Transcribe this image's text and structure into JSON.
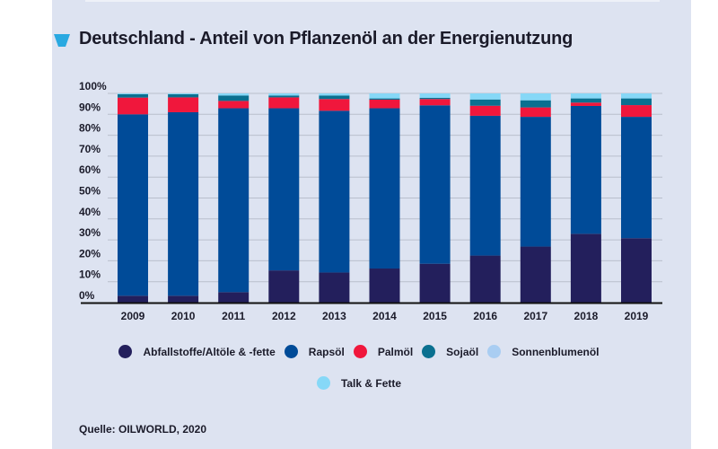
{
  "colors": {
    "background": "#dde3f1",
    "accent": "#29a9e1"
  },
  "chart_data": {
    "type": "bar",
    "stacked": true,
    "title": "Deutschland - Anteil von Pflanzenöl an der Energienutzung",
    "xlabel": "",
    "ylabel": "",
    "ylim": [
      0,
      100
    ],
    "yticks": [
      "0%",
      "10%",
      "20%",
      "30%",
      "40%",
      "50%",
      "60%",
      "70%",
      "80%",
      "90%",
      "100%"
    ],
    "grid": true,
    "legend_position": "bottom",
    "categories": [
      "2009",
      "2010",
      "2011",
      "2012",
      "2013",
      "2014",
      "2015",
      "2016",
      "2017",
      "2018",
      "2019"
    ],
    "series": [
      {
        "name": "Abfallstoffe/Altöle & -fette",
        "color": "#231f5c",
        "values": [
          3.3,
          3.3,
          5.0,
          15.4,
          14.4,
          16.3,
          18.6,
          22.5,
          26.8,
          32.9,
          30.8
        ]
      },
      {
        "name": "Rapsöl",
        "color": "#004b98",
        "values": [
          86.7,
          87.7,
          87.9,
          77.5,
          77.3,
          76.6,
          75.7,
          66.8,
          62.0,
          61.1,
          58.0
        ]
      },
      {
        "name": "Palmöl",
        "color": "#f0173c",
        "values": [
          8.0,
          7.1,
          3.5,
          5.2,
          5.6,
          4.1,
          3.0,
          4.8,
          4.5,
          1.6,
          5.6
        ]
      },
      {
        "name": "Sojaöl",
        "color": "#0a7090",
        "values": [
          1.6,
          1.5,
          2.6,
          0.9,
          1.7,
          0.6,
          0.6,
          3.0,
          3.4,
          2.0,
          3.2
        ]
      },
      {
        "name": "Sonnenblumenöl",
        "color": "#a9cdf2",
        "values": [
          0,
          0,
          0,
          0,
          0,
          0,
          0,
          0,
          0,
          0,
          0
        ]
      },
      {
        "name": "Talk & Fette",
        "color": "#86d8f7",
        "values": [
          0.4,
          0.4,
          1.0,
          1.0,
          1.0,
          2.4,
          2.1,
          2.9,
          3.3,
          2.4,
          2.4
        ]
      }
    ]
  },
  "source": "Quelle: OILWORLD, 2020"
}
